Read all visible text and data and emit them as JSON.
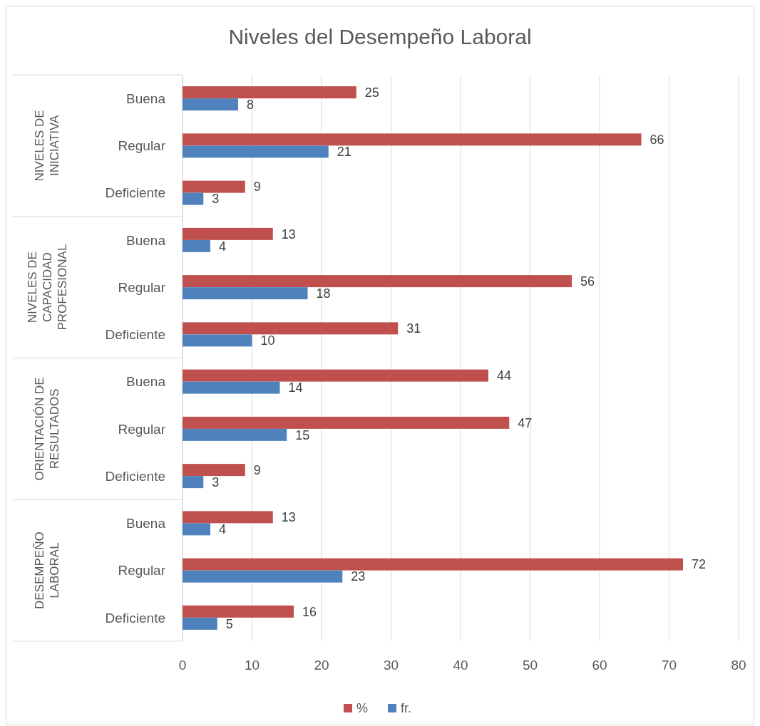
{
  "chart_data": {
    "type": "bar",
    "orientation": "horizontal",
    "title": "Niveles del Desempeño Laboral",
    "categories": [
      "Buena",
      "Regular",
      "Deficiente",
      "Buena",
      "Regular",
      "Deficiente",
      "Buena",
      "Regular",
      "Deficiente",
      "Buena",
      "Regular",
      "Deficiente"
    ],
    "annotations": [
      "NIVELES DE INICIATIVA",
      "NIVELES DE CAPACIDAD PROFESIONAL",
      "ORIENTACIÓN DE RESULTADOS",
      "DESEMPEÑO LABORAL"
    ],
    "series": [
      {
        "name": "%",
        "color": "#c0504d",
        "values": [
          25,
          66,
          9,
          13,
          56,
          31,
          44,
          47,
          9,
          13,
          72,
          16
        ]
      },
      {
        "name": "fr.",
        "color": "#4f81bd",
        "values": [
          8,
          21,
          3,
          4,
          18,
          10,
          14,
          15,
          3,
          4,
          23,
          5
        ]
      }
    ],
    "xlim": [
      0,
      80
    ],
    "xticks": [
      0,
      10,
      20,
      30,
      40,
      50,
      60,
      70,
      80
    ],
    "grid": "x",
    "data_labels": true,
    "legend": "bottom"
  }
}
